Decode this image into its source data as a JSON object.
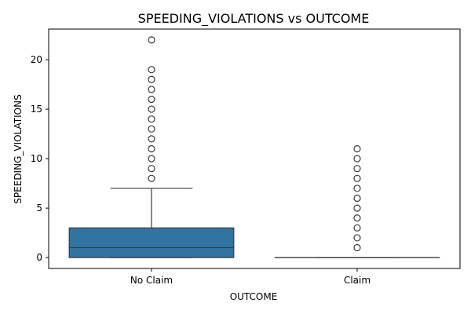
{
  "chart_data": {
    "type": "box",
    "title": "SPEEDING_VIOLATIONS vs OUTCOME",
    "xlabel": "OUTCOME",
    "ylabel": "SPEEDING_VIOLATIONS",
    "categories": [
      "No Claim",
      "Claim"
    ],
    "ylim": [
      -1.1,
      23.1
    ],
    "yticks": [
      0,
      5,
      10,
      15,
      20
    ],
    "box_color": "#3274a1",
    "box_edge_color": "#3a3a3a",
    "boxes": [
      {
        "category": "No Claim",
        "whisker_low": 0,
        "q1": 0,
        "median": 1,
        "q3": 3,
        "whisker_high": 7,
        "outliers": [
          8,
          9,
          10,
          11,
          12,
          13,
          14,
          15,
          16,
          17,
          18,
          19,
          22
        ]
      },
      {
        "category": "Claim",
        "whisker_low": 0,
        "q1": 0,
        "median": 0,
        "q3": 0,
        "whisker_high": 0,
        "outliers": [
          1,
          2,
          3,
          4,
          5,
          6,
          7,
          8,
          9,
          10,
          11
        ]
      }
    ],
    "grid": false,
    "legend": "none"
  }
}
